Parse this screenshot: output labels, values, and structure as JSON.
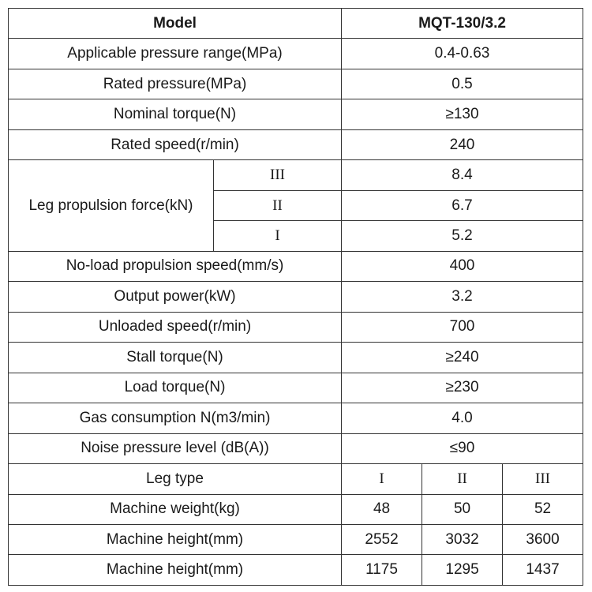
{
  "header": {
    "model_label": "Model",
    "model_value": "MQT-130/3.2"
  },
  "rows": [
    {
      "label": "Applicable pressure range(MPa)",
      "value": "0.4-0.63"
    },
    {
      "label": "Rated pressure(MPa)",
      "value": "0.5"
    },
    {
      "label": "Nominal torque(N)",
      "value": "≥130"
    },
    {
      "label": "Rated speed(r/min)",
      "value": "240"
    }
  ],
  "leg_force": {
    "label": "Leg propulsion force(kN)",
    "items": [
      {
        "grade": "III",
        "value": "8.4"
      },
      {
        "grade": "II",
        "value": "6.7"
      },
      {
        "grade": "I",
        "value": "5.2"
      }
    ]
  },
  "rows2": [
    {
      "label": "No-load propulsion speed(mm/s)",
      "value": "400"
    },
    {
      "label": "Output power(kW)",
      "value": "3.2"
    },
    {
      "label": "Unloaded speed(r/min)",
      "value": "700"
    },
    {
      "label": "Stall torque(N)",
      "value": "≥240"
    },
    {
      "label": "Load torque(N)",
      "value": "≥230"
    },
    {
      "label": "Gas consumption N(m3/min)",
      "value": "4.0"
    },
    {
      "label": "Noise pressure level (dB(A))",
      "value": "≤90"
    }
  ],
  "leg_type": {
    "label": "Leg type",
    "values": [
      "I",
      "II",
      "III"
    ]
  },
  "machine_rows": [
    {
      "label": "Machine weight(kg)",
      "values": [
        "48",
        "50",
        "52"
      ]
    },
    {
      "label": "Machine height(mm)",
      "values": [
        "2552",
        "3032",
        "3600"
      ]
    },
    {
      "label": "Machine height(mm)",
      "values": [
        "1175",
        "1295",
        "1437"
      ]
    }
  ]
}
